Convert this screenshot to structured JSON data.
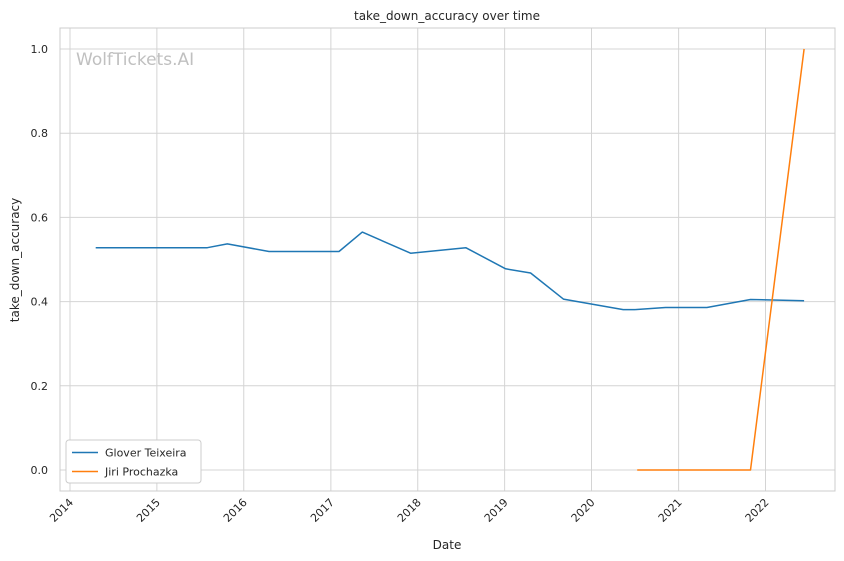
{
  "chart_data": {
    "type": "line",
    "title": "take_down_accuracy over time",
    "xlabel": "Date",
    "ylabel": "take_down_accuracy",
    "watermark": "WolfTickets.AI",
    "xlim": [
      "2013-11-20",
      "2022-10-20"
    ],
    "ylim": [
      -0.05,
      1.05
    ],
    "x_ticks": [
      "2014",
      "2015",
      "2016",
      "2017",
      "2018",
      "2019",
      "2020",
      "2021",
      "2022"
    ],
    "y_ticks": [
      "0.0",
      "0.2",
      "0.4",
      "0.6",
      "0.8",
      "1.0"
    ],
    "grid": true,
    "legend_position": "lower-left",
    "series": [
      {
        "name": "Glover Teixeira",
        "color": "#1f77b4",
        "points": [
          [
            "2014-04-19",
            0.528
          ],
          [
            "2015-08-01",
            0.528
          ],
          [
            "2015-10-24",
            0.537
          ],
          [
            "2016-04-16",
            0.519
          ],
          [
            "2017-02-04",
            0.519
          ],
          [
            "2017-05-13",
            0.565
          ],
          [
            "2017-12-02",
            0.515
          ],
          [
            "2018-07-22",
            0.528
          ],
          [
            "2019-01-05",
            0.478
          ],
          [
            "2019-04-20",
            0.468
          ],
          [
            "2019-09-05",
            0.406
          ],
          [
            "2020-05-13",
            0.381
          ],
          [
            "2020-06-30",
            0.381
          ],
          [
            "2020-11-07",
            0.386
          ],
          [
            "2021-04-30",
            0.386
          ],
          [
            "2021-10-30",
            0.405
          ],
          [
            "2022-06-12",
            0.402
          ]
        ]
      },
      {
        "name": "Jiri Prochazka",
        "color": "#ff7f0e",
        "points": [
          [
            "2020-07-11",
            0.0
          ],
          [
            "2021-10-30",
            0.0
          ],
          [
            "2022-06-12",
            1.0
          ]
        ]
      }
    ]
  }
}
